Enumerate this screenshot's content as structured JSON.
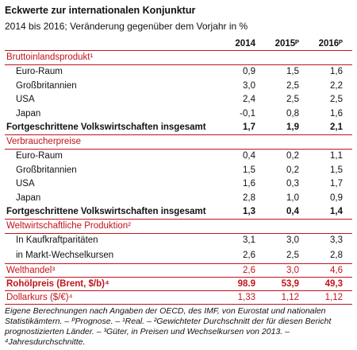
{
  "header": {
    "title": "Eckwerte zur internationalen Konjunktur",
    "subtitle": "2014 bis 2016; Veränderung gegenüber dem Vorjahr in %",
    "columns": [
      "2014",
      "2015ᴾ",
      "2016ᴾ"
    ]
  },
  "sections": [
    {
      "title": "Bruttoinlandsprodukt¹",
      "rows": [
        {
          "label": "Euro-Raum",
          "values": [
            "0,9",
            "1,5",
            "1,6"
          ]
        },
        {
          "label": "Großbritannien",
          "values": [
            "3,0",
            "2,5",
            "2,2"
          ]
        },
        {
          "label": "USA",
          "values": [
            "2,4",
            "2,5",
            "2,5"
          ]
        },
        {
          "label": "Japan",
          "values": [
            "-0,1",
            "0,8",
            "1,6"
          ]
        }
      ],
      "total": {
        "label": "Fortgeschrittene Volkswirtschaften insgesamt",
        "values": [
          "1,7",
          "1,9",
          "2,1"
        ]
      }
    },
    {
      "title": "Verbraucherpreise",
      "rows": [
        {
          "label": "Euro-Raum",
          "values": [
            "0,4",
            "0,2",
            "1,1"
          ]
        },
        {
          "label": "Großbritannien",
          "values": [
            "1,5",
            "0,2",
            "1,5"
          ]
        },
        {
          "label": "USA",
          "values": [
            "1,6",
            "0,3",
            "1,7"
          ]
        },
        {
          "label": "Japan",
          "values": [
            "2,8",
            "1,0",
            "0,9"
          ]
        }
      ],
      "total": {
        "label": "Fortgeschrittene Volkswirtschaften insgesamt",
        "values": [
          "1,3",
          "0,4",
          "1,4"
        ]
      }
    },
    {
      "title": "Weltwirtschaftliche Produktion²",
      "rows": [
        {
          "label": "In Kaufkraftparitäten",
          "values": [
            "3,1",
            "3,0",
            "3,3"
          ]
        },
        {
          "label": "in Markt-Wechselkursen",
          "values": [
            "2,6",
            "2,5",
            "2,8"
          ]
        }
      ]
    },
    {
      "title": "Welthandel³",
      "values": [
        "2,6",
        "3,0",
        "4,6"
      ]
    },
    {
      "title": "Rohölpreis (Brent, $/b)⁴",
      "values": [
        "98.9",
        "53,9",
        "49,3"
      ]
    },
    {
      "title": "Dollarkurs ($/€)⁴",
      "values": [
        "1,33",
        "1,12",
        "1,12"
      ]
    }
  ],
  "footnote": "Eigene Berechnungen nach Angaben der OECD, des IMF, von Eurostat und nationalen Statistikämtern. – ᴾPrognose. – ¹Real. – ²Gewichteter Durchschnitt der für diesen Bericht prognostizierten Länder. – ³Güter, in Preisen und Wechselkursen von 2013. – ⁴Jahresdurchschnitte."
}
